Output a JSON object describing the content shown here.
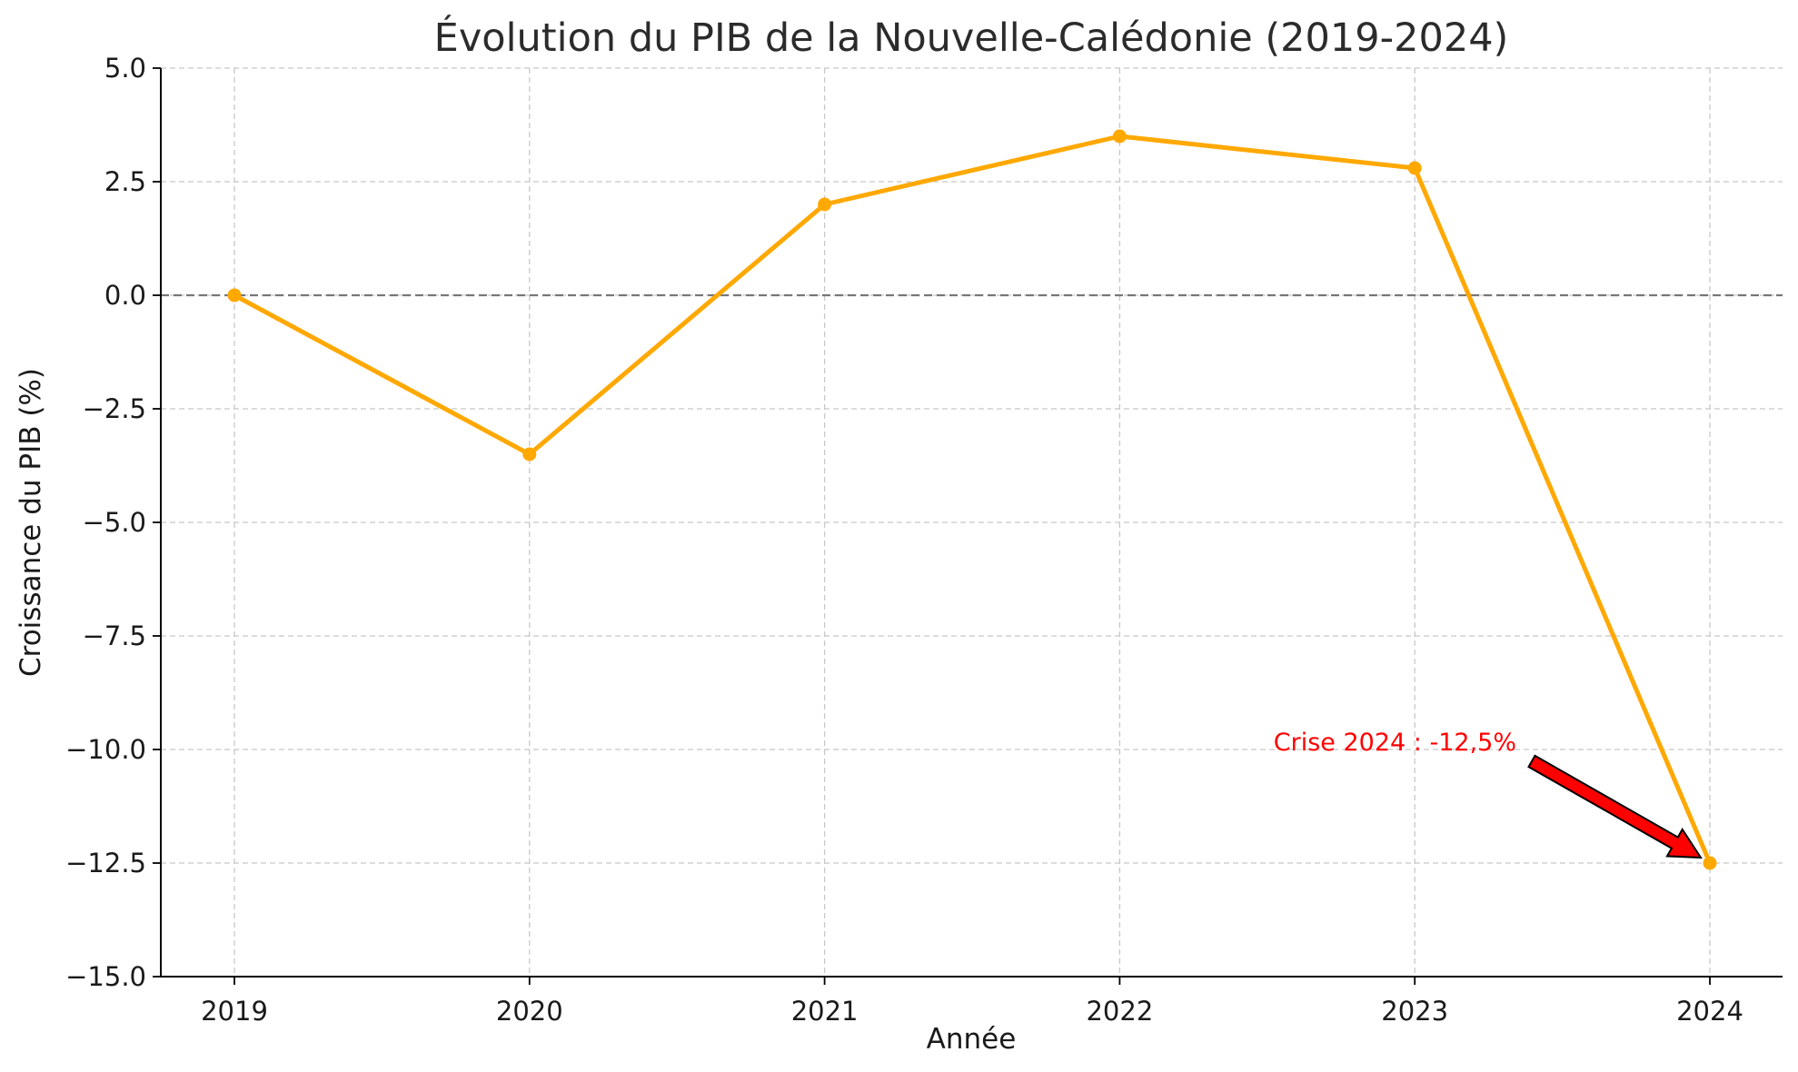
{
  "chart_data": {
    "type": "line",
    "title": "Évolution du PIB de la Nouvelle-Calédonie (2019-2024)",
    "xlabel": "Année",
    "ylabel": "Croissance du PIB (%)",
    "x": [
      "2019",
      "2020",
      "2021",
      "2022",
      "2023",
      "2024"
    ],
    "series": [
      {
        "values": [
          0.0,
          -3.5,
          2.0,
          3.5,
          2.8,
          -12.5
        ],
        "color": "#FFA800"
      }
    ],
    "ylim": [
      -15.0,
      5.0
    ],
    "yticks": [
      5.0,
      2.5,
      0.0,
      -2.5,
      -5.0,
      -7.5,
      -10.0,
      -12.5,
      -15.0
    ],
    "ytick_labels": [
      "5.0",
      "2.5",
      "0.0",
      "−2.5",
      "−5.0",
      "−7.5",
      "−10.0",
      "−12.5",
      "−15.0"
    ],
    "grid": true,
    "reference_line": {
      "y": 0,
      "style": "dashed",
      "color": "#777777"
    },
    "annotation": {
      "text": "Crise 2024 : -12,5%",
      "target_x": "2024",
      "target_y": -12.5,
      "text_color": "#FF0000",
      "arrow_color": "#FF0000"
    }
  }
}
